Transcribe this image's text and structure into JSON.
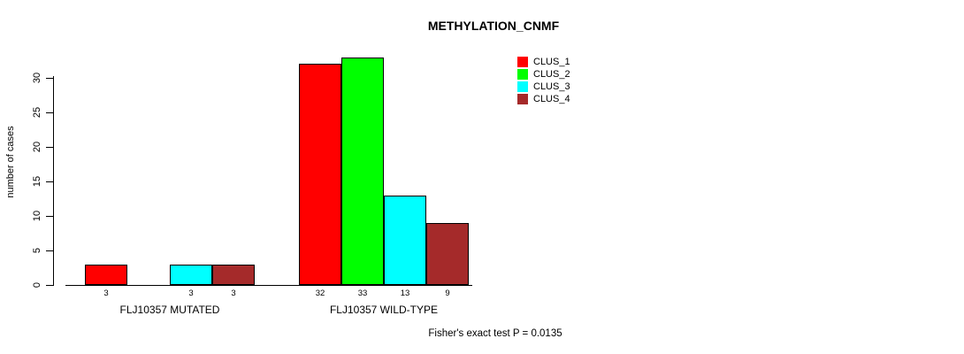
{
  "chart_data": {
    "type": "bar",
    "title": "METHYLATION_CNMF",
    "ylabel": "number of cases",
    "xlabel": "",
    "ylim": [
      0,
      30
    ],
    "yticks": [
      0,
      5,
      10,
      15,
      20,
      25,
      30
    ],
    "grid": false,
    "legend_position": "top-right",
    "categories": [
      "FLJ10357 MUTATED",
      "FLJ10357 WILD-TYPE"
    ],
    "series": [
      {
        "name": "CLUS_1",
        "color": "#ff0000",
        "values": [
          3,
          32
        ]
      },
      {
        "name": "CLUS_2",
        "color": "#00ff00",
        "values": [
          0,
          33
        ]
      },
      {
        "name": "CLUS_3",
        "color": "#00ffff",
        "values": [
          3,
          13
        ]
      },
      {
        "name": "CLUS_4",
        "color": "#a52a2a",
        "values": [
          3,
          9
        ]
      }
    ],
    "bar_value_labels": [
      [
        "3",
        "",
        "3",
        "3"
      ],
      [
        "32",
        "33",
        "13",
        "9"
      ]
    ],
    "annotation": "Fisher's exact test P = 0.0135",
    "colors": {
      "background": "#ffffff",
      "axis": "#000000",
      "text": "#000000"
    }
  }
}
